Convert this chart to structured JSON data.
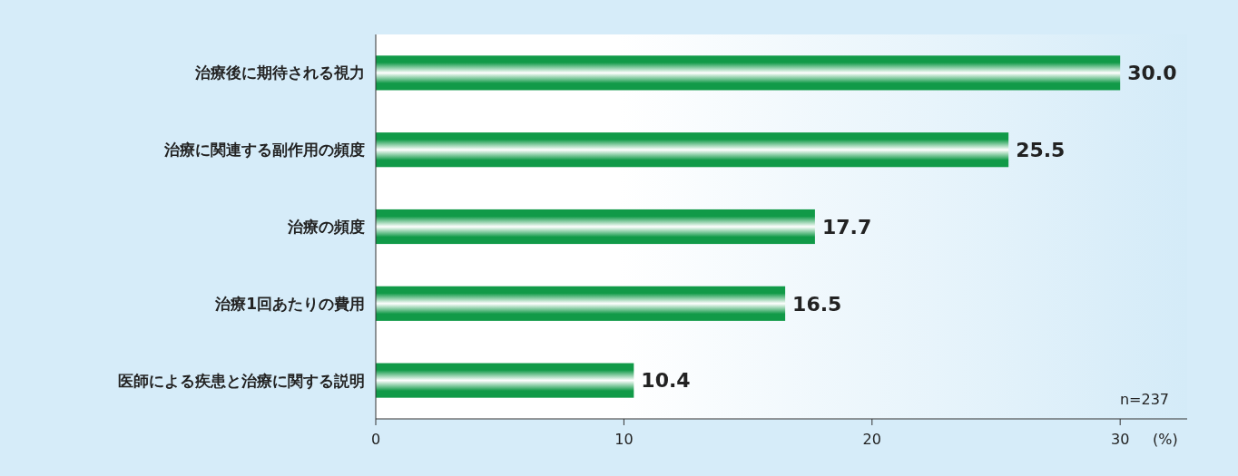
{
  "chart_data": {
    "type": "bar",
    "orientation": "horizontal",
    "categories": [
      "治療後に期待される視力",
      "治療に関連する副作用の頻度",
      "治療の頻度",
      "治療1回あたりの費用",
      "医師による疾患と治療に関する説明"
    ],
    "values": [
      30.0,
      25.5,
      17.7,
      16.5,
      10.4
    ],
    "color": "#119a48",
    "xlim": [
      0,
      32.7
    ],
    "xticks": [
      0,
      10,
      20,
      30
    ],
    "xlabel": "(%)",
    "annotations": [
      "n=237"
    ],
    "value_labels": [
      "30.0",
      "25.5",
      "17.7",
      "16.5",
      "10.4"
    ]
  }
}
